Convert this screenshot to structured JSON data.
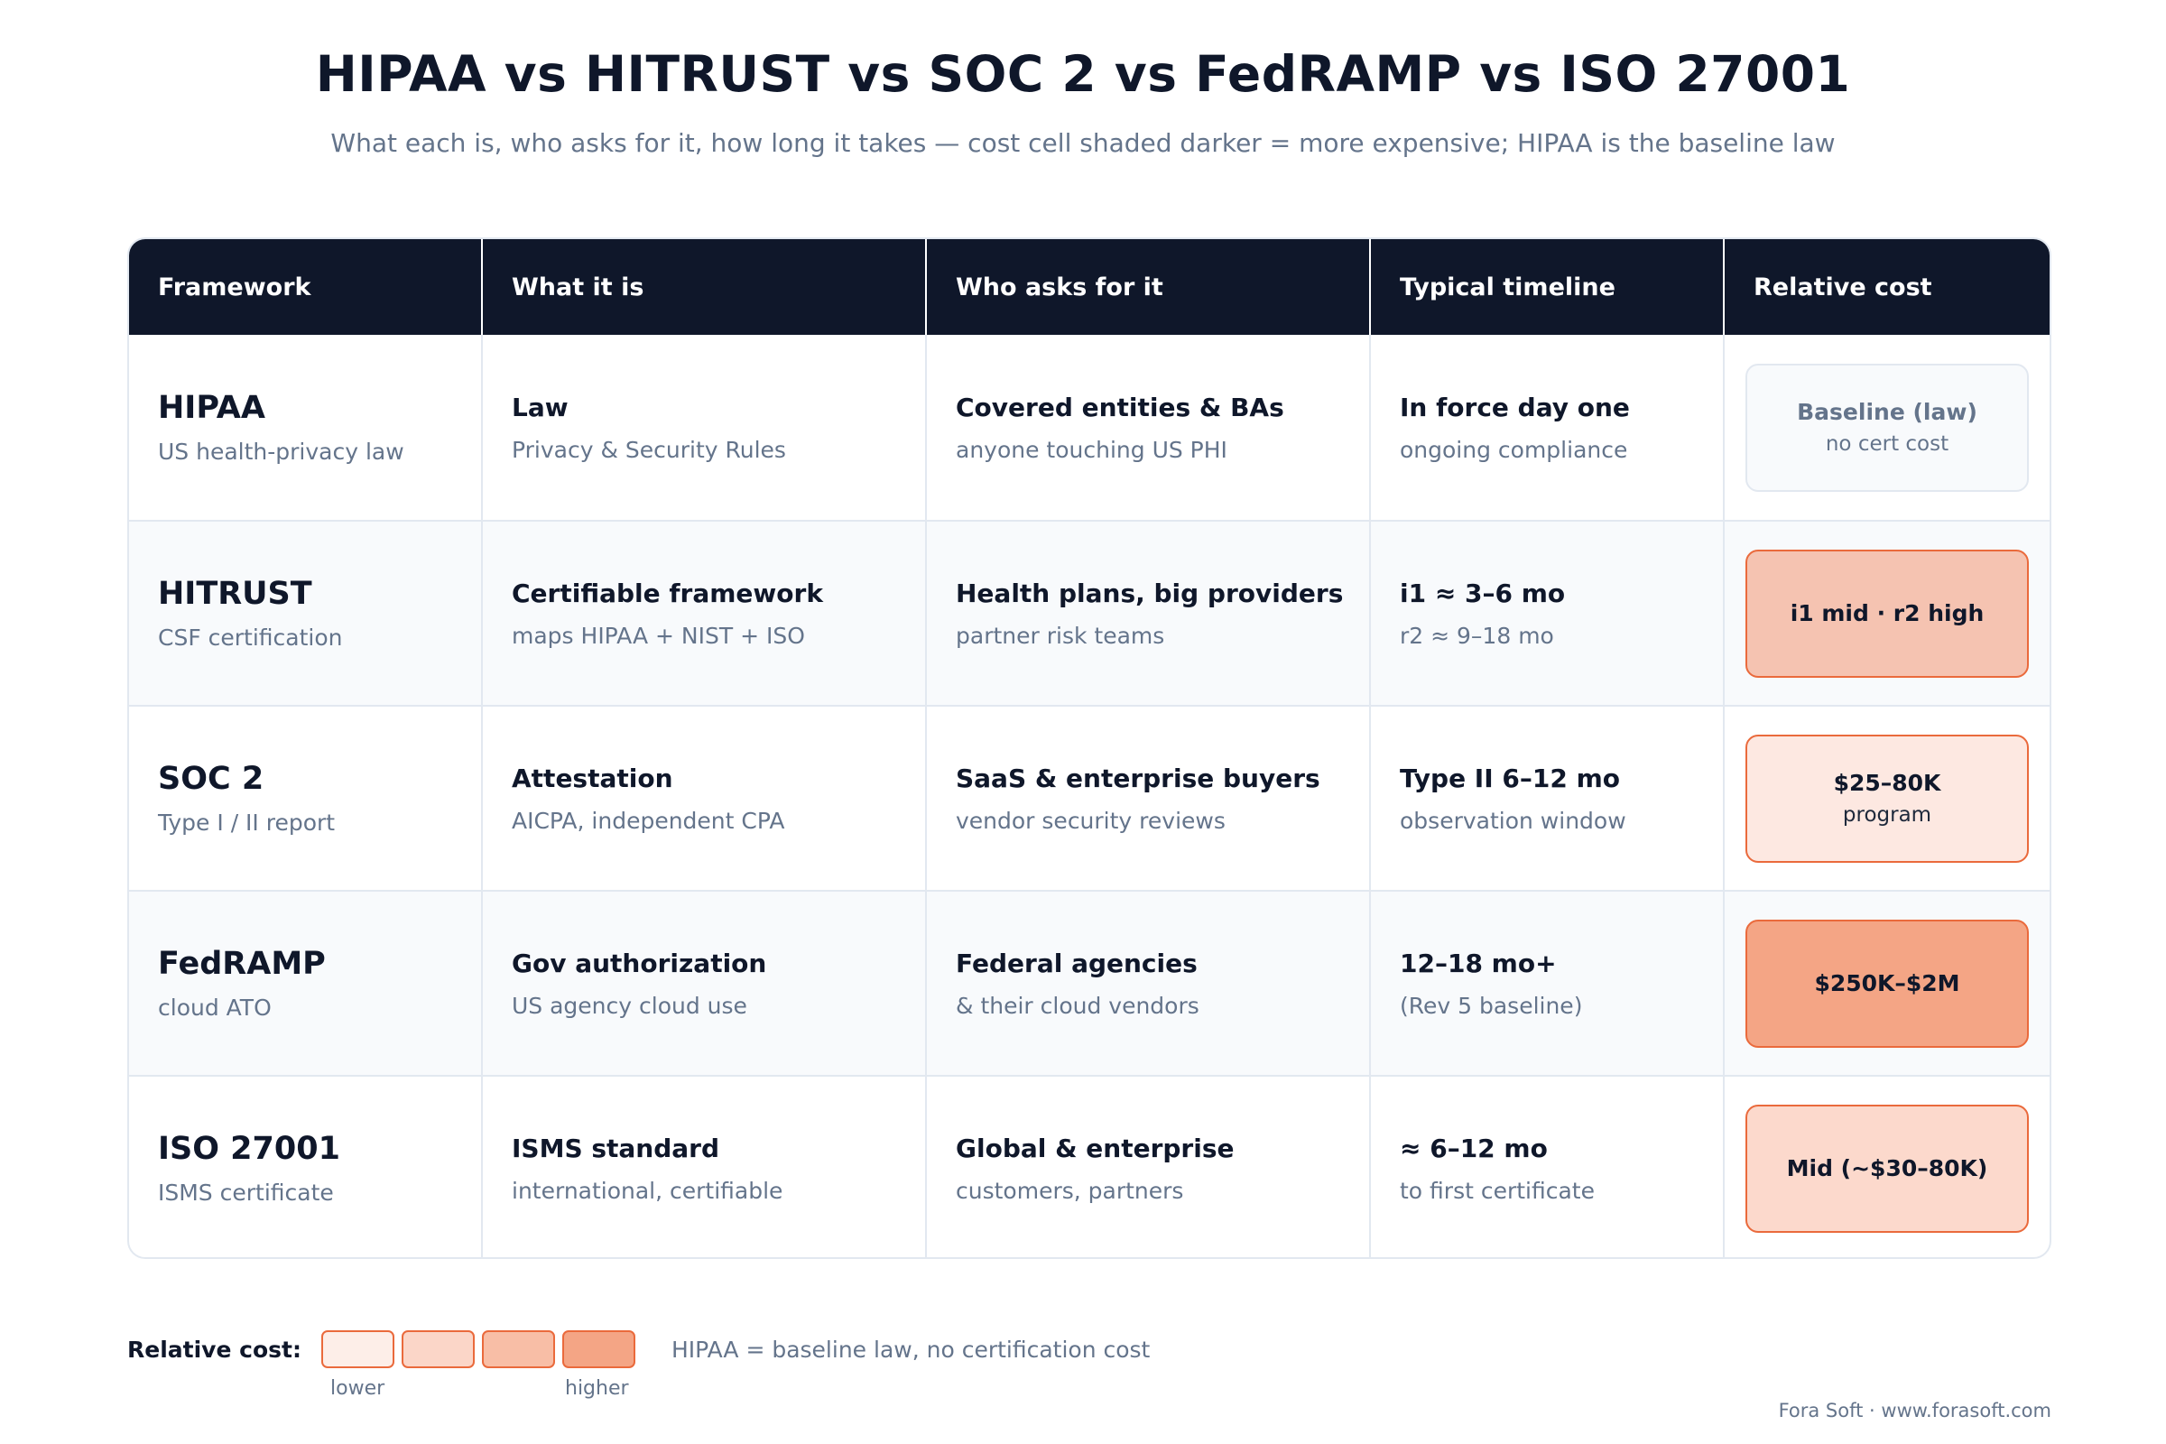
{
  "title": "HIPAA vs HITRUST vs SOC 2 vs FedRAMP vs ISO 27001",
  "subtitle": "What each is, who asks for it, how long it takes — cost cell shaded darker = more expensive; HIPAA is the baseline law",
  "headers": [
    "Framework",
    "What it is",
    "Who asks for it",
    "Typical timeline",
    "Relative cost"
  ],
  "rows": [
    {
      "framework": "HIPAA",
      "framework_sub": "US health-privacy law",
      "what": "Law",
      "what_sub": "Privacy & Security Rules",
      "who": "Covered entities & BAs",
      "who_sub": "anyone touching US PHI",
      "timeline": "In force day one",
      "timeline_sub": "ongoing compliance",
      "cost": "Baseline (law)",
      "cost_sub": "no cert cost",
      "cost_color": "#f8fafc"
    },
    {
      "framework": "HITRUST",
      "framework_sub": "CSF certification",
      "what": "Certifiable framework",
      "what_sub": "maps HIPAA + NIST + ISO",
      "who": "Health plans, big providers",
      "who_sub": "partner risk teams",
      "timeline": "i1 ≈ 3–6 mo",
      "timeline_sub": "r2 ≈ 9–18 mo",
      "cost": "i1 mid · r2 high",
      "cost_sub": "",
      "cost_color": "#f5c3b1"
    },
    {
      "framework": "SOC 2",
      "framework_sub": "Type I / II report",
      "what": "Attestation",
      "what_sub": "AICPA, independent CPA",
      "who": "SaaS & enterprise buyers",
      "who_sub": "vendor security reviews",
      "timeline": "Type II 6–12 mo",
      "timeline_sub": "observation window",
      "cost": "$25–80K",
      "cost_sub": "program",
      "cost_color": "#fde8e1"
    },
    {
      "framework": "FedRAMP",
      "framework_sub": "cloud ATO",
      "what": "Gov authorization",
      "what_sub": "US agency cloud use",
      "who": "Federal agencies",
      "who_sub": "& their cloud vendors",
      "timeline": "12–18 mo+",
      "timeline_sub": "(Rev 5 baseline)",
      "cost": "$250K–$2M",
      "cost_sub": "",
      "cost_color": "#f4a585"
    },
    {
      "framework": "ISO 27001",
      "framework_sub": "ISMS certificate",
      "what": "ISMS standard",
      "what_sub": "international, certifiable",
      "who": "Global & enterprise",
      "who_sub": "customers, partners",
      "timeline": "≈ 6–12 mo",
      "timeline_sub": "to first certificate",
      "cost": "Mid (~$30–80K)",
      "cost_sub": "",
      "cost_color": "#fcd9cc"
    }
  ],
  "legend": {
    "label": "Relative cost:",
    "swatches": [
      "#fdeee8",
      "#fbd6c8",
      "#f8bea6",
      "#f4a585"
    ],
    "low": "lower",
    "high": "higher",
    "note": "HIPAA = baseline law, no certification cost"
  },
  "footer": "Fora Soft · www.forasoft.com"
}
